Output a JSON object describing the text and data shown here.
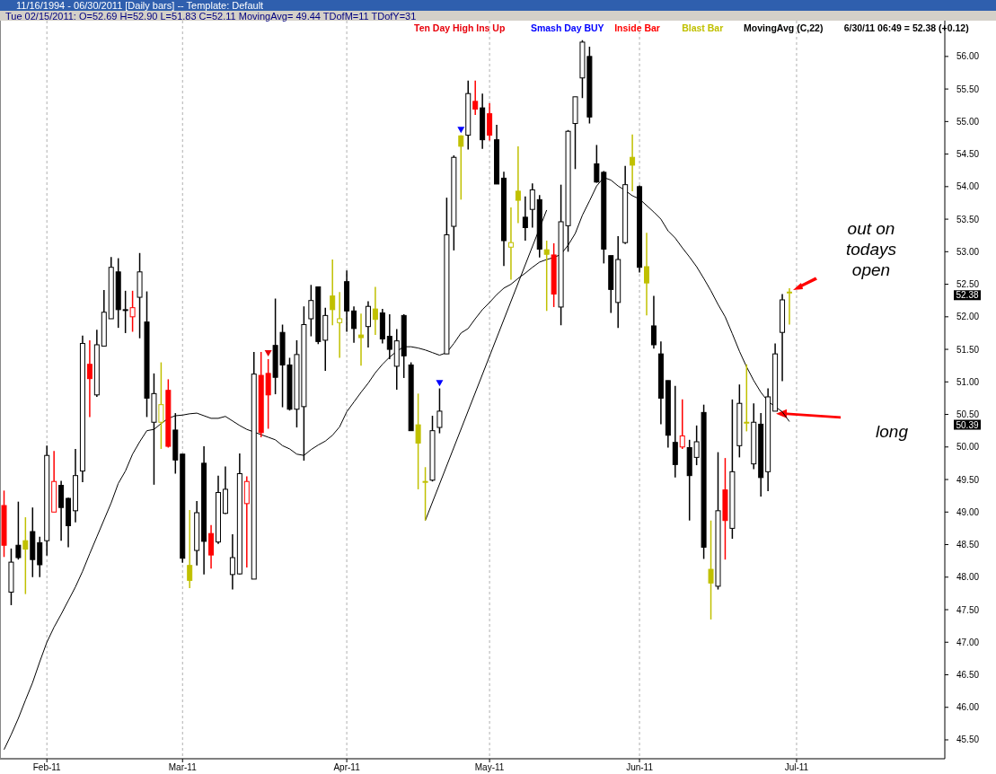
{
  "chart_data": {
    "type": "candlestick",
    "title": "11/16/1994 - 06/30/2011   [Daily bars]   --  Template: Default",
    "subtitle": "Tue  02/15/2011:  O=52.69  H=52.90  L=51.83  C=52.11  MovingAvg= 49.44  TDofM=11  TDofY=31",
    "categories": [
      null,
      null,
      null,
      null,
      null,
      null,
      "Feb-11",
      null,
      null,
      null,
      null,
      null,
      null,
      null,
      null,
      null,
      null,
      null,
      null,
      null,
      null,
      null,
      null,
      null,
      null,
      "Mar-11",
      null,
      null,
      null,
      null,
      null,
      null,
      null,
      null,
      null,
      null,
      null,
      null,
      null,
      null,
      null,
      null,
      null,
      null,
      null,
      null,
      null,
      null,
      "Apr-11",
      null,
      null,
      null,
      null,
      null,
      null,
      null,
      null,
      null,
      null,
      null,
      null,
      null,
      null,
      null,
      null,
      null,
      null,
      null,
      "May-11",
      null,
      null,
      null,
      null,
      null,
      null,
      null,
      null,
      null,
      null,
      null,
      null,
      null,
      null,
      null,
      null,
      null,
      null,
      null,
      null,
      "Jun-11",
      null,
      null,
      null,
      null,
      null,
      null,
      null,
      null,
      null,
      null,
      null,
      null,
      null,
      null,
      null,
      null,
      null,
      null,
      null,
      null,
      null,
      "Jul-11"
    ],
    "ylim": [
      45.21,
      56.55
    ],
    "yticks": [
      {
        "value": 45.5,
        "label": "45.50"
      },
      {
        "value": 46,
        "label": "46.00"
      },
      {
        "value": 46.5,
        "label": "46.50"
      },
      {
        "value": 47,
        "label": "47.00"
      },
      {
        "value": 47.5,
        "label": "47.50"
      },
      {
        "value": 48,
        "label": "48.00"
      },
      {
        "value": 48.5,
        "label": "48.50"
      },
      {
        "value": 49,
        "label": "49.00"
      },
      {
        "value": 49.5,
        "label": "49.50"
      },
      {
        "value": 50,
        "label": "50.00"
      },
      {
        "value": 50.5,
        "label": "50.50"
      },
      {
        "value": 51,
        "label": "51.00"
      },
      {
        "value": 51.5,
        "label": "51.50"
      },
      {
        "value": 52,
        "label": "52.00"
      },
      {
        "value": 52.5,
        "label": "52.50"
      },
      {
        "value": 53,
        "label": "53.00"
      },
      {
        "value": 53.5,
        "label": "53.50"
      },
      {
        "value": 54,
        "label": "54.00"
      },
      {
        "value": 54.5,
        "label": "54.50"
      },
      {
        "value": 55,
        "label": "55.00"
      },
      {
        "value": 55.5,
        "label": "55.50"
      },
      {
        "value": 56,
        "label": "56.00"
      }
    ],
    "grid": "x",
    "legend": "top right",
    "series": [
      {
        "type": "candlestick",
        "color": "#000000",
        "ohlc": [
          null,
          [
            47.77,
            48.44,
            47.57,
            48.23
          ],
          [
            48.49,
            49.16,
            48.27,
            48.3
          ],
          null,
          [
            48.7,
            49.07,
            48.0,
            48.27
          ],
          [
            48.53,
            48.62,
            48.0,
            48.19
          ],
          [
            48.56,
            50.02,
            48.33,
            49.87
          ],
          null,
          [
            49.41,
            49.48,
            48.56,
            49.07
          ],
          [
            49.21,
            49.22,
            48.46,
            48.79
          ],
          [
            49.02,
            49.97,
            48.84,
            49.56
          ],
          [
            49.63,
            51.71,
            49.46,
            51.59
          ],
          null,
          [
            50.8,
            51.8,
            50.77,
            51.57
          ],
          [
            51.55,
            52.41,
            51.55,
            52.07
          ],
          [
            51.97,
            52.92,
            51.97,
            52.76
          ],
          [
            52.69,
            52.9,
            51.83,
            52.11
          ],
          [
            52.11,
            52.4,
            51.75,
            52.11
          ],
          null,
          [
            52.3,
            52.98,
            51.67,
            52.69
          ],
          [
            51.92,
            52.39,
            50.46,
            50.75
          ],
          [
            50.38,
            51.13,
            49.42,
            50.82
          ],
          null,
          null,
          [
            50.26,
            50.52,
            49.59,
            49.8
          ],
          [
            49.89,
            49.89,
            48.22,
            48.29
          ],
          null,
          [
            48.41,
            49.17,
            48.18,
            48.99
          ],
          [
            49.75,
            50.01,
            48.04,
            48.55
          ],
          null,
          [
            48.54,
            49.56,
            48.51,
            49.3
          ],
          [
            48.98,
            49.7,
            48.97,
            49.35
          ],
          [
            48.04,
            48.66,
            47.81,
            48.3
          ],
          [
            48.05,
            49.9,
            48.04,
            49.59
          ],
          null,
          [
            47.97,
            51.46,
            47.97,
            51.12
          ],
          null,
          null,
          [
            51.56,
            52.28,
            50.81,
            51.07
          ],
          [
            51.76,
            51.88,
            50.61,
            51.26
          ],
          [
            51.26,
            51.37,
            50.56,
            50.58
          ],
          [
            50.58,
            51.64,
            50.3,
            51.42
          ],
          [
            50.62,
            52.16,
            49.79,
            51.88
          ],
          [
            51.97,
            52.49,
            51.7,
            52.25
          ],
          [
            52.46,
            52.46,
            51.58,
            51.62
          ],
          [
            51.64,
            52.14,
            51.17,
            52.02
          ],
          null,
          null,
          [
            52.54,
            52.71,
            51.77,
            52.09
          ],
          [
            52.09,
            52.16,
            51.6,
            51.82
          ],
          null,
          [
            51.85,
            52.24,
            51.53,
            52.16
          ],
          null,
          [
            52.06,
            52.12,
            51.59,
            51.66
          ],
          [
            51.7,
            52.04,
            51.35,
            51.5
          ],
          [
            51.24,
            51.81,
            50.88,
            51.63
          ],
          [
            52.02,
            52.04,
            51.06,
            51.4
          ],
          [
            51.26,
            51.3,
            50.25,
            50.25
          ],
          null,
          null,
          [
            49.49,
            50.48,
            49.47,
            50.25
          ],
          [
            50.3,
            50.9,
            50.21,
            50.55
          ],
          [
            51.43,
            53.83,
            51.43,
            53.26
          ],
          [
            53.39,
            54.48,
            53.02,
            54.45
          ],
          null,
          [
            54.79,
            55.63,
            54.57,
            55.43
          ],
          null,
          [
            55.21,
            55.43,
            54.58,
            54.72
          ],
          null,
          [
            54.72,
            54.95,
            54.04,
            54.04
          ],
          [
            54.13,
            54.23,
            52.78,
            53.17
          ],
          null,
          null,
          [
            53.53,
            53.85,
            53.17,
            53.37
          ],
          [
            53.65,
            54.05,
            53.37,
            53.95
          ],
          [
            53.8,
            53.87,
            52.91,
            53.04
          ],
          null,
          null,
          [
            52.15,
            54.03,
            51.87,
            53.46
          ],
          [
            53.4,
            54.87,
            53.0,
            54.85
          ],
          [
            54.97,
            55.38,
            54.27,
            55.38
          ],
          [
            55.67,
            56.25,
            55.36,
            56.22
          ],
          [
            56.0,
            56.15,
            54.97,
            55.07
          ],
          [
            54.35,
            54.64,
            54.06,
            54.07
          ],
          [
            54.22,
            54.24,
            52.82,
            53.04
          ],
          [
            52.94,
            52.94,
            52.06,
            52.42
          ],
          [
            52.22,
            53.24,
            51.83,
            52.88
          ],
          [
            53.14,
            54.32,
            53.12,
            54.03
          ],
          null,
          [
            54.0,
            54.02,
            52.68,
            52.76
          ],
          null,
          [
            51.86,
            52.32,
            51.51,
            51.57
          ],
          [
            51.43,
            51.62,
            50.35,
            50.75
          ],
          [
            51.02,
            51.02,
            49.99,
            50.18
          ],
          [
            50.07,
            50.94,
            49.53,
            49.73
          ],
          null,
          [
            49.99,
            50.11,
            48.87,
            49.56
          ],
          [
            49.84,
            50.33,
            49.72,
            50.08
          ],
          [
            50.53,
            50.65,
            48.28,
            48.46
          ],
          null,
          [
            47.86,
            49.92,
            47.81,
            49.02
          ],
          null,
          [
            48.75,
            50.73,
            48.59,
            49.62
          ],
          [
            50.02,
            50.96,
            49.84,
            50.67
          ],
          null,
          [
            49.74,
            50.67,
            49.66,
            50.38
          ],
          [
            50.35,
            50.52,
            49.24,
            49.53
          ],
          [
            49.62,
            50.9,
            49.32,
            50.77
          ],
          [
            50.55,
            51.59,
            50.55,
            51.43
          ],
          [
            51.76,
            52.35,
            51.01,
            52.26
          ],
          null,
          null
        ]
      },
      {
        "type": "scatter",
        "name": "Ten Day High Ins Up",
        "color": "#e8000b",
        "marker": "triangle",
        "values": [
          null,
          null,
          null,
          null,
          null,
          null,
          null,
          null,
          null,
          null,
          null,
          null,
          null,
          null,
          null,
          null,
          null,
          null,
          null,
          null,
          null,
          null,
          null,
          null,
          null,
          null,
          null,
          null,
          null,
          null,
          null,
          null,
          null,
          null,
          null,
          null,
          null,
          51.44,
          null,
          null,
          null,
          null,
          null,
          null,
          null,
          null,
          null,
          null,
          null,
          null,
          null,
          null,
          null,
          null,
          null,
          null,
          null,
          null,
          null,
          null,
          null,
          null,
          null,
          null,
          null,
          null,
          null,
          null,
          null,
          null,
          null,
          null,
          null,
          null,
          null,
          null,
          null,
          null,
          null,
          null,
          null,
          null,
          null,
          null,
          null,
          null,
          null,
          null,
          null,
          null,
          null,
          null,
          null,
          null,
          null,
          null,
          null,
          null,
          null,
          null,
          null,
          null,
          null,
          null,
          null,
          null,
          null,
          null,
          null,
          null,
          null,
          null
        ]
      },
      {
        "type": "scatter",
        "name": "Smash Day BUY",
        "color": "#0000ff",
        "marker": "triangle",
        "values": [
          null,
          null,
          null,
          null,
          null,
          null,
          null,
          null,
          null,
          null,
          null,
          null,
          null,
          null,
          null,
          null,
          null,
          null,
          null,
          null,
          null,
          null,
          null,
          null,
          null,
          null,
          null,
          null,
          null,
          null,
          null,
          null,
          null,
          null,
          null,
          null,
          null,
          null,
          null,
          null,
          null,
          null,
          null,
          null,
          null,
          null,
          null,
          null,
          null,
          null,
          null,
          null,
          null,
          null,
          null,
          null,
          null,
          null,
          null,
          null,
          null,
          50.98,
          null,
          null,
          54.87,
          null,
          null,
          null,
          null,
          null,
          null,
          null,
          null,
          null,
          null,
          null,
          null,
          null,
          null,
          null,
          null,
          null,
          null,
          null,
          null,
          null,
          null,
          null,
          null,
          null,
          null,
          null,
          null,
          null,
          null,
          null,
          null,
          null,
          null,
          null,
          null,
          null,
          null,
          null,
          null,
          null,
          null,
          null,
          null,
          null,
          null,
          null
        ]
      },
      {
        "type": "candlestick",
        "name": "Inside Bar",
        "color": "#ff0000",
        "ohlc": [
          [
            49.1,
            49.33,
            48.31,
            48.49
          ],
          null,
          null,
          null,
          null,
          null,
          null,
          [
            49.0,
            49.94,
            49.0,
            49.47
          ],
          null,
          null,
          null,
          null,
          [
            51.27,
            51.64,
            50.46,
            51.05
          ],
          null,
          null,
          null,
          null,
          null,
          [
            52.0,
            52.4,
            51.77,
            52.14
          ],
          null,
          null,
          null,
          null,
          [
            50.87,
            51.04,
            49.99,
            50.01
          ],
          null,
          null,
          null,
          null,
          null,
          [
            48.67,
            48.8,
            48.13,
            48.34
          ],
          null,
          null,
          null,
          null,
          [
            49.13,
            49.55,
            48.15,
            49.47
          ],
          null,
          [
            51.1,
            51.46,
            50.15,
            50.22
          ],
          [
            51.13,
            51.35,
            50.28,
            50.8
          ],
          null,
          null,
          null,
          null,
          null,
          null,
          null,
          null,
          null,
          null,
          null,
          null,
          null,
          null,
          null,
          null,
          null,
          null,
          null,
          null,
          null,
          null,
          null,
          null,
          null,
          null,
          null,
          null,
          [
            55.31,
            55.63,
            55.1,
            55.19
          ],
          null,
          [
            55.12,
            55.28,
            54.71,
            54.79
          ],
          null,
          null,
          null,
          null,
          null,
          null,
          null,
          null,
          [
            52.95,
            53.13,
            52.15,
            52.35
          ],
          null,
          null,
          null,
          null,
          null,
          null,
          null,
          null,
          null,
          null,
          null,
          null,
          null,
          null,
          null,
          null,
          null,
          [
            50.0,
            50.73,
            49.97,
            50.17
          ],
          null,
          null,
          null,
          null,
          null,
          [
            49.34,
            49.83,
            48.27,
            48.87
          ],
          null,
          null,
          null,
          null,
          null,
          null,
          null,
          null,
          null,
          null
        ]
      },
      {
        "type": "candlestick",
        "name": "Blast Bar",
        "color": "#c0c000",
        "ohlc": [
          null,
          null,
          null,
          [
            48.56,
            48.92,
            47.74,
            48.43
          ],
          null,
          null,
          null,
          null,
          null,
          null,
          null,
          null,
          null,
          null,
          null,
          null,
          null,
          null,
          null,
          null,
          null,
          null,
          [
            50.38,
            51.3,
            49.97,
            50.65
          ],
          null,
          null,
          null,
          [
            48.18,
            49.03,
            47.83,
            47.95
          ],
          null,
          null,
          null,
          null,
          null,
          null,
          null,
          null,
          null,
          null,
          null,
          null,
          null,
          null,
          null,
          null,
          null,
          null,
          null,
          [
            52.32,
            52.88,
            51.87,
            52.11
          ],
          [
            51.91,
            52.38,
            51.37,
            51.97
          ],
          null,
          null,
          [
            51.72,
            52.05,
            51.25,
            51.68
          ],
          null,
          [
            52.12,
            52.46,
            51.72,
            51.96
          ],
          null,
          null,
          null,
          null,
          null,
          [
            50.34,
            50.82,
            49.35,
            50.06
          ],
          [
            49.47,
            49.69,
            48.87,
            49.47
          ],
          null,
          null,
          null,
          null,
          [
            54.78,
            54.79,
            53.8,
            54.62
          ],
          null,
          null,
          null,
          null,
          null,
          null,
          [
            53.07,
            53.68,
            52.57,
            53.14
          ],
          [
            53.93,
            54.62,
            53.44,
            53.79
          ],
          null,
          null,
          null,
          [
            53.03,
            53.17,
            52.09,
            52.96
          ],
          null,
          null,
          null,
          null,
          null,
          null,
          null,
          null,
          null,
          null,
          null,
          [
            54.45,
            54.8,
            53.93,
            54.33
          ],
          null,
          [
            52.77,
            53.29,
            52.02,
            52.52
          ],
          null,
          null,
          null,
          null,
          null,
          null,
          null,
          null,
          [
            48.12,
            48.87,
            47.35,
            47.91
          ],
          null,
          null,
          null,
          null,
          [
            50.38,
            51.27,
            50.24,
            50.38
          ],
          null,
          null,
          null,
          null,
          null,
          [
            52.38,
            52.44,
            51.88,
            52.38
          ],
          null
        ]
      },
      {
        "type": "line",
        "name": "MovingAvg (C,22)",
        "color": "#000000",
        "values": [
          45.35,
          45.58,
          45.83,
          46.11,
          46.38,
          46.7,
          47.0,
          47.23,
          47.43,
          47.64,
          47.85,
          48.09,
          48.36,
          48.62,
          48.88,
          49.14,
          49.44,
          49.63,
          49.89,
          50.08,
          50.25,
          50.27,
          50.36,
          50.44,
          50.48,
          50.49,
          50.51,
          50.52,
          50.48,
          50.44,
          50.44,
          50.47,
          50.4,
          50.33,
          50.27,
          50.23,
          50.19,
          50.15,
          50.11,
          50.02,
          49.97,
          49.89,
          49.87,
          49.96,
          50.03,
          50.09,
          50.18,
          50.31,
          50.54,
          50.69,
          50.84,
          50.98,
          51.14,
          51.27,
          51.38,
          51.47,
          51.54,
          51.54,
          51.52,
          51.49,
          51.45,
          51.41,
          51.45,
          51.59,
          51.75,
          51.82,
          51.97,
          52.11,
          52.22,
          52.34,
          52.44,
          52.5,
          52.59,
          52.67,
          52.76,
          52.84,
          52.88,
          52.91,
          52.96,
          53.1,
          53.28,
          53.56,
          53.78,
          54.01,
          54.14,
          54.1,
          54.01,
          53.94,
          53.86,
          53.81,
          53.71,
          53.61,
          53.5,
          53.32,
          53.21,
          53.06,
          52.92,
          52.77,
          52.59,
          52.4,
          52.19,
          52.0,
          51.74,
          51.47,
          51.23,
          51.02,
          50.84,
          50.7,
          50.62,
          50.54,
          50.39,
          null
        ]
      },
      {
        "type": "line",
        "color": "#000000",
        "values": [
          null,
          null,
          null,
          null,
          null,
          null,
          null,
          null,
          null,
          null,
          null,
          null,
          null,
          null,
          null,
          null,
          null,
          null,
          null,
          null,
          null,
          null,
          null,
          null,
          null,
          null,
          null,
          null,
          null,
          null,
          null,
          null,
          null,
          null,
          null,
          null,
          null,
          null,
          null,
          null,
          null,
          null,
          null,
          null,
          null,
          null,
          null,
          null,
          null,
          null,
          null,
          null,
          null,
          null,
          null,
          null,
          null,
          null,
          null,
          48.87,
          null,
          null,
          null,
          null,
          null,
          null,
          null,
          null,
          null,
          null,
          null,
          null,
          null,
          null,
          null,
          null,
          53.64,
          null,
          null,
          null,
          null,
          null,
          null,
          null,
          null,
          null,
          null,
          null,
          null,
          null,
          null,
          null,
          null,
          null,
          null,
          null,
          null,
          null,
          null,
          null,
          null,
          null,
          null,
          null,
          null,
          null,
          null,
          null,
          null,
          null,
          null,
          null
        ]
      }
    ],
    "annotations": [
      "out on todays open",
      "long",
      "6/30/11 06:49 = 52.38 (+0.12)",
      "52.38",
      "50.39"
    ]
  }
}
